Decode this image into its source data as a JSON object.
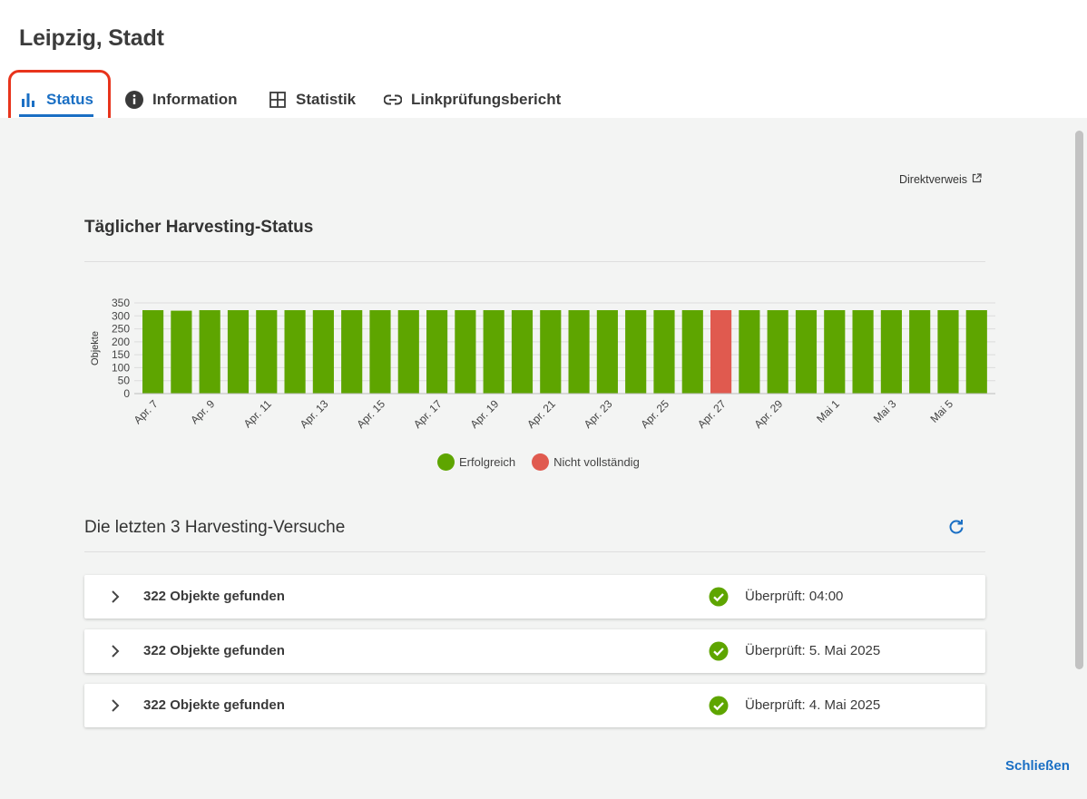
{
  "title": "Leipzig, Stadt",
  "tabs": [
    {
      "label": "Status",
      "icon": "bar-chart-icon",
      "active": true
    },
    {
      "label": "Information",
      "icon": "info-icon",
      "active": false
    },
    {
      "label": "Statistik",
      "icon": "grid-icon",
      "active": false
    },
    {
      "label": "Linkprüfungsbericht",
      "icon": "link-icon",
      "active": false
    }
  ],
  "direct_link": {
    "label": "Direktverweis",
    "icon": "external-link-icon"
  },
  "daily_status": {
    "title": "Täglicher Harvesting-Status"
  },
  "colors": {
    "success": "#5ea500",
    "incomplete": "#e05a4f",
    "accent": "#1a6fc4",
    "highlight": "#e8341c"
  },
  "chart_data": {
    "type": "bar",
    "ylabel": "Objekte",
    "ylim": [
      0,
      350
    ],
    "yticks": [
      "0",
      "50",
      "100",
      "150",
      "200",
      "250",
      "300",
      "350"
    ],
    "xtick_labels": [
      "Apr. 7",
      "Apr. 9",
      "Apr. 11",
      "Apr. 13",
      "Apr. 15",
      "Apr. 17",
      "Apr. 19",
      "Apr. 21",
      "Apr. 23",
      "Apr. 25",
      "Apr. 27",
      "Apr. 29",
      "Mai 1",
      "Mai 3",
      "Mai 5"
    ],
    "categories": [
      "Apr. 7",
      "Apr. 8",
      "Apr. 9",
      "Apr. 10",
      "Apr. 11",
      "Apr. 12",
      "Apr. 13",
      "Apr. 14",
      "Apr. 15",
      "Apr. 16",
      "Apr. 17",
      "Apr. 18",
      "Apr. 19",
      "Apr. 20",
      "Apr. 21",
      "Apr. 22",
      "Apr. 23",
      "Apr. 24",
      "Apr. 25",
      "Apr. 26",
      "Apr. 27",
      "Apr. 28",
      "Apr. 29",
      "Apr. 30",
      "Mai 1",
      "Mai 2",
      "Mai 3",
      "Mai 4",
      "Mai 5",
      "Mai 6"
    ],
    "values": [
      322,
      320,
      322,
      322,
      322,
      322,
      322,
      322,
      322,
      322,
      322,
      322,
      322,
      322,
      322,
      322,
      322,
      322,
      322,
      322,
      322,
      322,
      322,
      322,
      322,
      322,
      322,
      322,
      322,
      322
    ],
    "status": [
      "Erfolgreich",
      "Erfolgreich",
      "Erfolgreich",
      "Erfolgreich",
      "Erfolgreich",
      "Erfolgreich",
      "Erfolgreich",
      "Erfolgreich",
      "Erfolgreich",
      "Erfolgreich",
      "Erfolgreich",
      "Erfolgreich",
      "Erfolgreich",
      "Erfolgreich",
      "Erfolgreich",
      "Erfolgreich",
      "Erfolgreich",
      "Erfolgreich",
      "Erfolgreich",
      "Erfolgreich",
      "Nicht vollständig",
      "Erfolgreich",
      "Erfolgreich",
      "Erfolgreich",
      "Erfolgreich",
      "Erfolgreich",
      "Erfolgreich",
      "Erfolgreich",
      "Erfolgreich",
      "Erfolgreich"
    ],
    "legend": [
      {
        "label": "Erfolgreich",
        "color": "#5ea500"
      },
      {
        "label": "Nicht vollständig",
        "color": "#e05a4f"
      }
    ],
    "grid": true,
    "legend_position": "bottom"
  },
  "recent": {
    "title": "Die letzten 3 Harvesting-Versuche",
    "refresh_icon": "refresh-icon",
    "items": [
      {
        "count_label": "322 Objekte gefunden",
        "checked_label": "Überprüft: 04:00"
      },
      {
        "count_label": "322 Objekte gefunden",
        "checked_label": "Überprüft: 5. Mai 2025"
      },
      {
        "count_label": "322 Objekte gefunden",
        "checked_label": "Überprüft: 4. Mai 2025"
      }
    ]
  },
  "close_label": "Schließen"
}
